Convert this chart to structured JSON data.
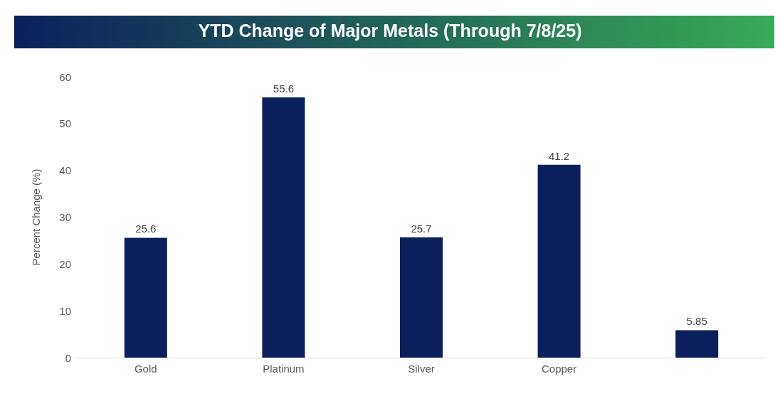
{
  "chart_data": {
    "type": "bar",
    "title": "YTD Change of Major Metals (Through 7/8/25)",
    "ylabel": "Percent Change (%)",
    "categories": [
      "Gold",
      "Platinum",
      "Silver",
      "Copper",
      null
    ],
    "values": [
      25.6,
      55.6,
      25.7,
      41.2,
      5.85
    ],
    "color": "#0a1f5c",
    "ylim": [
      0,
      60
    ],
    "yticks": [
      0,
      10,
      20,
      30,
      40,
      50,
      60
    ],
    "grid": false,
    "data_labels": true
  }
}
